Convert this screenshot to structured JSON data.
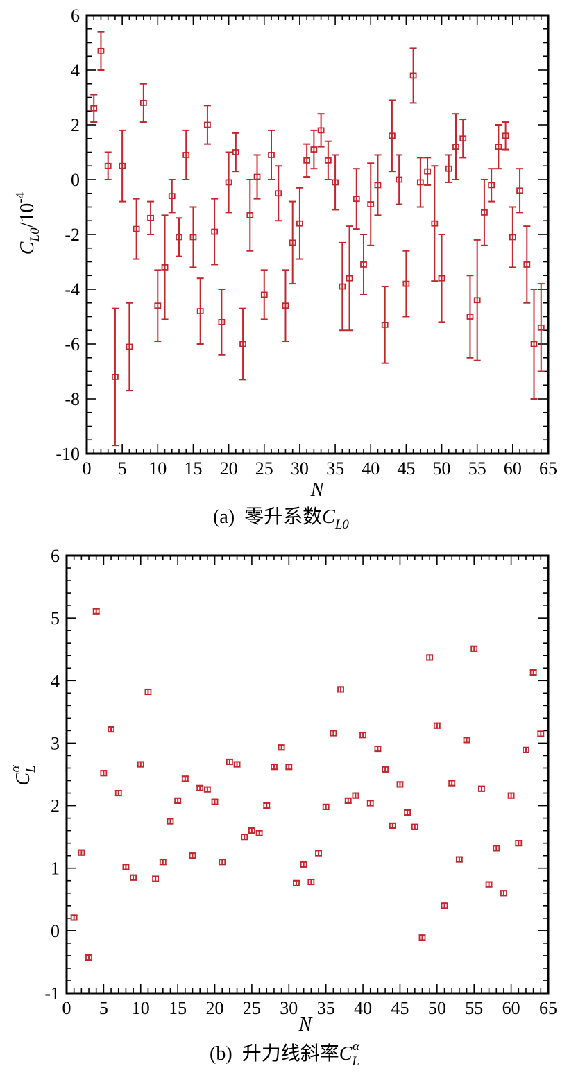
{
  "colors": {
    "marker": "#c0282d",
    "axis": "#000000",
    "background": "#ffffff"
  },
  "chart_data": [
    {
      "type": "scatter",
      "title": "",
      "caption": {
        "label": "(a)",
        "text": "零升系数",
        "symbol": "C",
        "subscript": "L0"
      },
      "xlabel": "N",
      "ylabel": {
        "symbol": "C",
        "subscript": "L0",
        "unit": "/10",
        "exponent": "-4"
      },
      "xlim": [
        0,
        65
      ],
      "ylim": [
        -10,
        6
      ],
      "xticks": [
        0,
        5,
        10,
        15,
        20,
        25,
        30,
        35,
        40,
        45,
        50,
        55,
        60,
        65
      ],
      "yticks": [
        -10,
        -8,
        -6,
        -4,
        -2,
        0,
        2,
        4,
        6
      ],
      "x_minor_step": 1,
      "y_minor_step": 0.5,
      "grid": false,
      "errorbars": true,
      "x": [
        1,
        2,
        3,
        4,
        5,
        6,
        7,
        8,
        9,
        10,
        11,
        12,
        13,
        14,
        15,
        16,
        17,
        18,
        19,
        20,
        21,
        22,
        23,
        24,
        25,
        26,
        27,
        28,
        29,
        30,
        31,
        32,
        33,
        34,
        35,
        36,
        37,
        38,
        39,
        40,
        41,
        42,
        43,
        44,
        45,
        46,
        47,
        48,
        49,
        50,
        51,
        52,
        53,
        54,
        55,
        56,
        57,
        58,
        59,
        60,
        61,
        62,
        63,
        64
      ],
      "y": [
        2.6,
        4.7,
        0.5,
        -7.2,
        0.5,
        -6.1,
        -1.8,
        2.8,
        -1.4,
        -4.6,
        -3.2,
        -0.6,
        -2.1,
        0.9,
        -2.1,
        -4.8,
        2.0,
        -1.9,
        -5.2,
        -0.1,
        1.0,
        -6.0,
        -1.3,
        0.1,
        -4.2,
        0.9,
        -0.5,
        -4.6,
        -2.3,
        -1.6,
        0.7,
        1.1,
        1.8,
        0.7,
        -0.1,
        -3.9,
        -3.6,
        -0.7,
        -3.1,
        -0.9,
        -0.2,
        -5.3,
        1.6,
        0.0,
        -3.8,
        3.8,
        -0.1,
        0.3,
        -1.6,
        -3.6,
        0.4,
        1.2,
        1.5,
        -5.0,
        -4.4,
        -1.2,
        -0.2,
        1.2,
        1.6,
        -2.1,
        -0.4,
        -3.1,
        -6.0,
        -5.4
      ],
      "error": [
        0.5,
        0.7,
        0.5,
        2.5,
        1.3,
        1.6,
        1.1,
        0.7,
        0.6,
        1.3,
        1.9,
        0.6,
        0.7,
        0.9,
        1.1,
        1.2,
        0.7,
        1.2,
        1.2,
        1.1,
        0.7,
        1.3,
        1.3,
        0.8,
        0.9,
        0.9,
        1.0,
        1.3,
        1.5,
        1.3,
        0.6,
        0.7,
        0.6,
        0.7,
        1.0,
        1.6,
        1.9,
        1.1,
        1.1,
        1.5,
        1.1,
        1.4,
        1.3,
        0.9,
        1.2,
        1.0,
        0.9,
        0.5,
        2.1,
        1.6,
        0.5,
        1.2,
        0.7,
        1.5,
        2.2,
        1.2,
        0.6,
        0.8,
        0.5,
        1.1,
        0.8,
        1.4,
        2.0,
        1.6
      ]
    },
    {
      "type": "scatter",
      "title": "",
      "caption": {
        "label": "(b)",
        "text": "升力线斜率",
        "symbol": "C",
        "subscript": "L",
        "superscript": "α"
      },
      "xlabel": "N",
      "ylabel": {
        "symbol": "C",
        "subscript": "L",
        "superscript": "α"
      },
      "xlim": [
        0,
        65
      ],
      "ylim": [
        -1,
        6
      ],
      "xticks": [
        0,
        5,
        10,
        15,
        20,
        25,
        30,
        35,
        40,
        45,
        50,
        55,
        60,
        65
      ],
      "yticks": [
        -1,
        0,
        1,
        2,
        3,
        4,
        5,
        6
      ],
      "x_minor_step": 1,
      "y_minor_step": 0.2,
      "grid": false,
      "errorbars": true,
      "x": [
        1,
        2,
        3,
        4,
        5,
        6,
        7,
        8,
        9,
        10,
        11,
        12,
        13,
        14,
        15,
        16,
        17,
        18,
        19,
        20,
        21,
        22,
        23,
        24,
        25,
        26,
        27,
        28,
        29,
        30,
        31,
        32,
        33,
        34,
        35,
        36,
        37,
        38,
        39,
        40,
        41,
        42,
        43,
        44,
        45,
        46,
        47,
        48,
        49,
        50,
        51,
        52,
        53,
        54,
        55,
        56,
        57,
        58,
        59,
        60,
        61,
        62,
        63,
        64
      ],
      "y": [
        0.21,
        1.25,
        -0.43,
        5.11,
        2.52,
        3.22,
        2.2,
        1.02,
        0.85,
        2.66,
        3.82,
        0.83,
        1.1,
        1.75,
        2.08,
        2.43,
        1.2,
        2.28,
        2.26,
        2.06,
        1.1,
        2.7,
        2.66,
        1.5,
        1.6,
        1.56,
        2.0,
        2.62,
        2.93,
        2.62,
        0.76,
        1.06,
        0.78,
        1.24,
        1.98,
        3.16,
        3.86,
        2.08,
        2.16,
        3.13,
        2.04,
        2.91,
        2.58,
        1.68,
        2.34,
        1.89,
        1.66,
        -0.11,
        4.37,
        3.28,
        0.4,
        2.36,
        1.14,
        3.05,
        4.51,
        2.27,
        0.74,
        1.32,
        0.6,
        2.16,
        1.4,
        2.89,
        4.13,
        3.15
      ],
      "error": [
        0.04,
        0.04,
        0.04,
        0.04,
        0.04,
        0.04,
        0.04,
        0.04,
        0.04,
        0.04,
        0.04,
        0.04,
        0.04,
        0.04,
        0.04,
        0.04,
        0.04,
        0.04,
        0.04,
        0.04,
        0.04,
        0.04,
        0.04,
        0.04,
        0.04,
        0.04,
        0.04,
        0.04,
        0.04,
        0.04,
        0.04,
        0.04,
        0.04,
        0.04,
        0.04,
        0.04,
        0.04,
        0.04,
        0.04,
        0.04,
        0.04,
        0.04,
        0.04,
        0.04,
        0.04,
        0.04,
        0.04,
        0.04,
        0.04,
        0.04,
        0.04,
        0.04,
        0.04,
        0.04,
        0.04,
        0.04,
        0.04,
        0.04,
        0.04,
        0.04,
        0.04,
        0.04,
        0.04,
        0.04
      ]
    }
  ]
}
